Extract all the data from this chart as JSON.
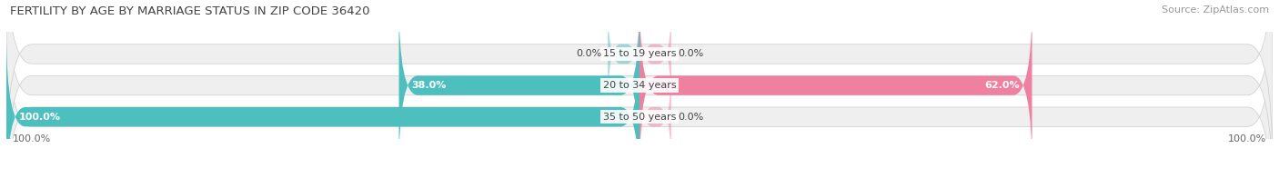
{
  "title": "FERTILITY BY AGE BY MARRIAGE STATUS IN ZIP CODE 36420",
  "source": "Source: ZipAtlas.com",
  "categories": [
    "35 to 50 years",
    "20 to 34 years",
    "15 to 19 years"
  ],
  "married_values": [
    100.0,
    38.0,
    0.0
  ],
  "unmarried_values": [
    0.0,
    62.0,
    0.0
  ],
  "married_color": "#4DBFBF",
  "unmarried_color": "#F080A0",
  "bar_bg_color": "#EFEFEF",
  "bar_bg_border": "#DDDDDD",
  "bar_height": 0.62,
  "x_left_label": "100.0%",
  "x_right_label": "100.0%",
  "title_fontsize": 9.5,
  "label_fontsize": 8.0,
  "tick_fontsize": 8.0,
  "source_fontsize": 8.0,
  "legend_fontsize": 8.5,
  "small_bar_width": 5.0
}
